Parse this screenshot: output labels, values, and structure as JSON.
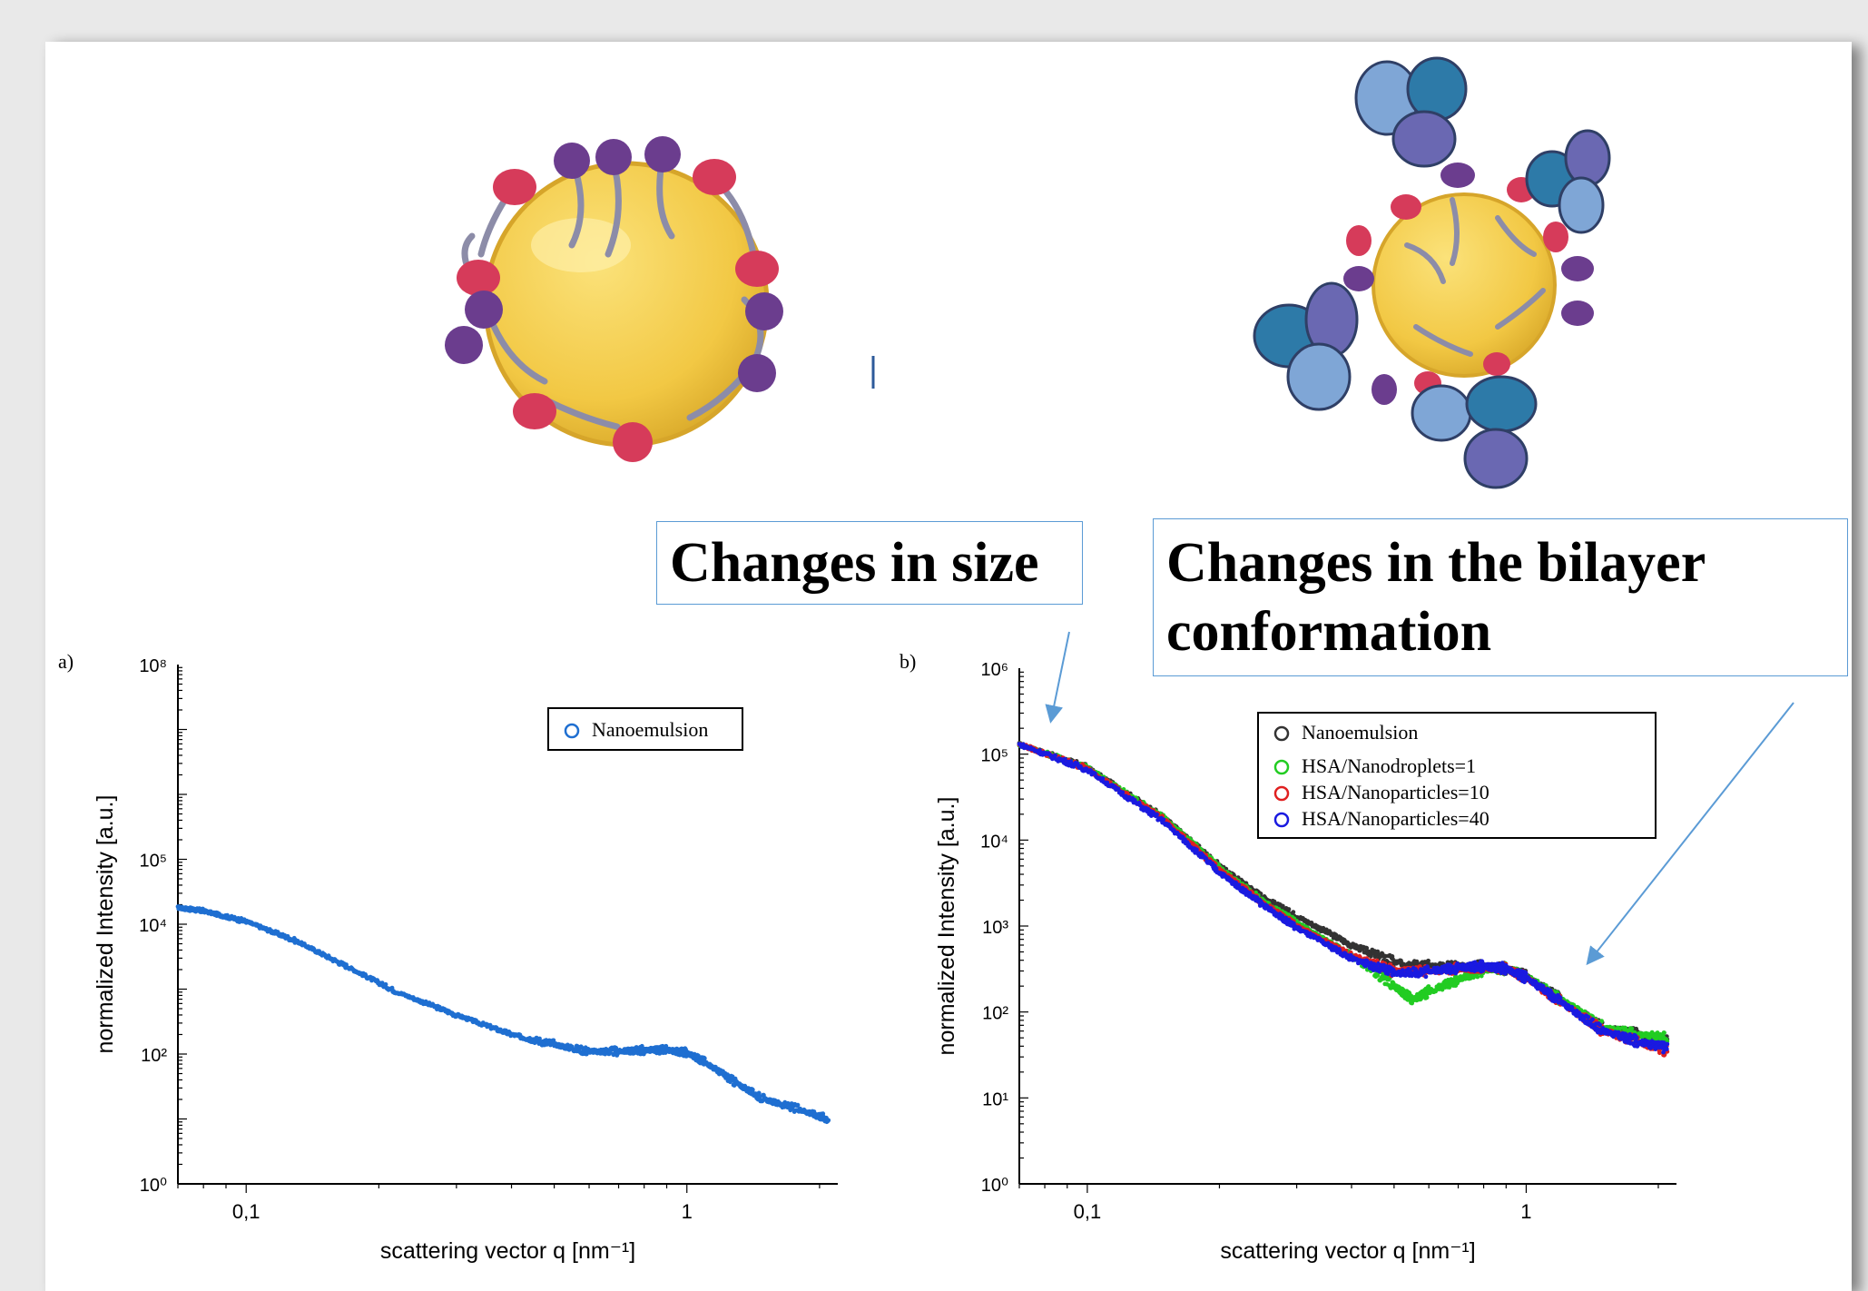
{
  "callouts": {
    "size": "Changes in size",
    "bilayer": "Changes in the bilayer conformation"
  },
  "colors": {
    "callout_border": "#5b9bd5",
    "arrow": "#5b9bd5",
    "droplet_core": "#f2c844",
    "lipid_head_red": "#d63b5a",
    "lipid_head_purple": "#6b3d8e",
    "protein_blue": "#2d7aa8",
    "protein_light": "#7fa6d6"
  },
  "chart_data": [
    {
      "type": "scatter",
      "panel_label": "a)",
      "xlabel": "scattering vector q [nm⁻¹]",
      "ylabel": "normalized Intensity [a.u.]",
      "x_scale": "log",
      "y_scale": "log",
      "xlim": [
        0.07,
        2.2
      ],
      "ylim": [
        1,
        100000000
      ],
      "x_ticks": [
        {
          "value": 0.1,
          "label": "0,1"
        },
        {
          "value": 1,
          "label": "1"
        }
      ],
      "y_ticks": [
        {
          "value": 1,
          "label": "10⁰"
        },
        {
          "value": 100,
          "label": "10²"
        },
        {
          "value": 10000,
          "label": "10⁴"
        },
        {
          "value": 100000,
          "label": "10⁵"
        },
        {
          "value": 100000000,
          "label": "10⁸"
        }
      ],
      "legend_position": "top-right",
      "series": [
        {
          "name": "Nanoemulsion",
          "color": "#1f6fd1",
          "x": [
            0.07,
            0.08,
            0.1,
            0.13,
            0.17,
            0.22,
            0.3,
            0.4,
            0.5,
            0.6,
            0.7,
            0.8,
            0.9,
            1.0,
            1.1,
            1.3,
            1.5,
            1.8,
            2.1
          ],
          "y": [
            18000,
            16000,
            11000,
            5500,
            2200,
            900,
            400,
            200,
            140,
            110,
            110,
            115,
            115,
            105,
            75,
            35,
            20,
            14,
            10
          ]
        }
      ]
    },
    {
      "type": "scatter",
      "panel_label": "b)",
      "xlabel": "scattering vector q [nm⁻¹]",
      "ylabel": "normalized Intensity [a.u.]",
      "x_scale": "log",
      "y_scale": "log",
      "xlim": [
        0.07,
        2.2
      ],
      "ylim": [
        1,
        1000000
      ],
      "x_ticks": [
        {
          "value": 0.1,
          "label": "0,1"
        },
        {
          "value": 1,
          "label": "1"
        }
      ],
      "y_ticks": [
        {
          "value": 1,
          "label": "10⁰"
        },
        {
          "value": 10,
          "label": "10¹"
        },
        {
          "value": 100,
          "label": "10²"
        },
        {
          "value": 1000,
          "label": "10³"
        },
        {
          "value": 10000,
          "label": "10⁴"
        },
        {
          "value": 100000,
          "label": "10⁵"
        },
        {
          "value": 1000000,
          "label": "10⁶"
        }
      ],
      "legend_position": "top-right",
      "series": [
        {
          "name": "Nanoemulsion",
          "color": "#333333",
          "x": [
            0.07,
            0.1,
            0.15,
            0.2,
            0.25,
            0.3,
            0.4,
            0.5,
            0.6,
            0.7,
            0.8,
            0.9,
            1.0,
            1.2,
            1.5,
            1.8,
            2.1
          ],
          "y": [
            130000,
            70000,
            18000,
            5000,
            2200,
            1300,
            600,
            380,
            340,
            340,
            340,
            320,
            260,
            140,
            65,
            55,
            45
          ]
        },
        {
          "name": "HSA/Nanodroplets=1",
          "color": "#22cc22",
          "x": [
            0.07,
            0.1,
            0.15,
            0.2,
            0.25,
            0.3,
            0.4,
            0.5,
            0.55,
            0.6,
            0.7,
            0.8,
            0.9,
            1.0,
            1.2,
            1.5,
            1.8,
            2.1
          ],
          "y": [
            130000,
            70000,
            18000,
            4800,
            2000,
            1100,
            450,
            200,
            140,
            170,
            240,
            310,
            320,
            260,
            140,
            65,
            55,
            50
          ]
        },
        {
          "name": "HSA/Nanoparticles=10",
          "color": "#e02020",
          "x": [
            0.07,
            0.1,
            0.15,
            0.2,
            0.25,
            0.3,
            0.4,
            0.5,
            0.6,
            0.7,
            0.8,
            0.9,
            1.0,
            1.2,
            1.5,
            1.8,
            2.1
          ],
          "y": [
            130000,
            68000,
            17000,
            4500,
            1900,
            1000,
            450,
            300,
            300,
            320,
            330,
            320,
            250,
            130,
            60,
            45,
            35
          ]
        },
        {
          "name": "HSA/Nanoparticles=40",
          "color": "#1a1ae0",
          "x": [
            0.07,
            0.1,
            0.15,
            0.2,
            0.25,
            0.3,
            0.4,
            0.5,
            0.6,
            0.7,
            0.8,
            0.9,
            1.0,
            1.2,
            1.5,
            1.8,
            2.1
          ],
          "y": [
            130000,
            66000,
            16000,
            4200,
            1800,
            950,
            420,
            280,
            300,
            330,
            340,
            320,
            250,
            130,
            60,
            45,
            38
          ]
        }
      ]
    }
  ]
}
